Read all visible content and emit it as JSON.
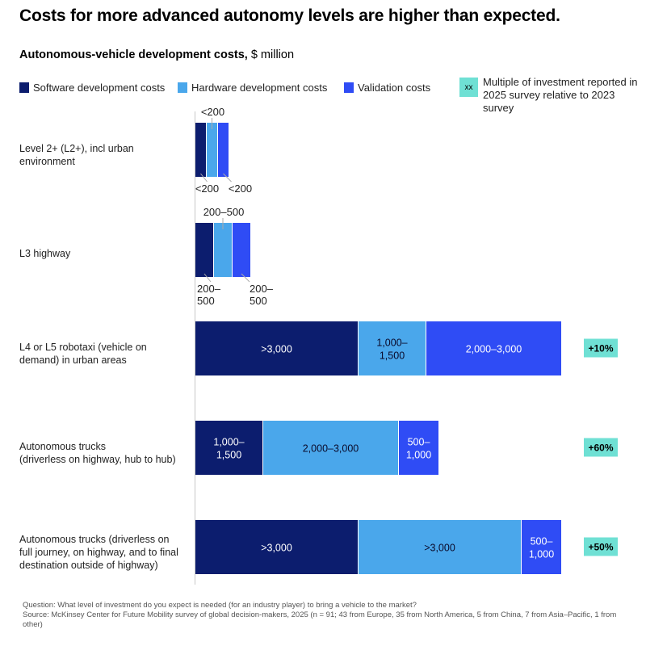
{
  "title": "Costs for more advanced autonomy levels are higher than expected.",
  "subtitle": {
    "bold": "Autonomous-vehicle development costs,",
    "unit": " $ million"
  },
  "legend": {
    "software": "Software development costs",
    "hardware": "Hardware development costs",
    "validation": "Validation costs",
    "badge_symbol": "xx",
    "badge_line1": "Multiple of investment reported in",
    "badge_line2": "2025 survey relative to 2023 survey"
  },
  "colors": {
    "software": "#0c1d6e",
    "hardware": "#4aa7eb",
    "validation": "#2f4cf5",
    "badge": "#6fe0d4"
  },
  "chart_data": {
    "type": "bar",
    "orientation": "horizontal-stacked",
    "title": "Costs for more advanced autonomy levels are higher than expected.",
    "subtitle": "Autonomous-vehicle development costs, $ million",
    "xlabel": "",
    "ylabel": "",
    "grid": false,
    "legend_position": "top",
    "categories": [
      "Level 2+ (L2+), incl urban environment",
      "L3 highway",
      "L4 or L5 robotaxi (vehicle on demand) in urban areas",
      "Autonomous trucks (driverless on highway, hub to hub)",
      "Autonomous trucks (driverless on full journey, on highway, and to final destination outside of highway)"
    ],
    "category_lines": [
      [
        "Level 2+ (L2+), incl urban",
        "environment"
      ],
      [
        "L3 highway"
      ],
      [
        "L4 or L5 robotaxi (vehicle on",
        "demand) in urban areas"
      ],
      [
        "Autonomous trucks",
        "(driverless on highway, hub to hub)"
      ],
      [
        "Autonomous trucks (driverless on",
        "full journey, on highway, and to final",
        "destination outside of highway)"
      ]
    ],
    "series": [
      {
        "name": "Software development costs",
        "key": "software",
        "values": [
          200,
          350,
          3000,
          1250,
          3000
        ],
        "labels": [
          "<200",
          "200–500",
          ">3,000",
          "1,000–1,500",
          ">3,000"
        ]
      },
      {
        "name": "Hardware development costs",
        "key": "hardware",
        "values": [
          200,
          350,
          1250,
          2500,
          3000
        ],
        "labels": [
          "<200",
          "200–500",
          "1,000–1,500",
          "2,000–3,000",
          ">3,000"
        ]
      },
      {
        "name": "Validation costs",
        "key": "validation",
        "values": [
          200,
          350,
          2500,
          750,
          750
        ],
        "labels": [
          "<200",
          "200–500",
          "2,000–3,000",
          "500–1,000",
          "500–1,000"
        ]
      }
    ],
    "multiples": [
      null,
      null,
      "+10%",
      "+60%",
      "+50%"
    ]
  },
  "footnote": {
    "question": "Question: What level of investment do you expect is needed (for an industry player) to bring a vehicle to the market?",
    "source": "Source: McKinsey Center for Future Mobility survey of global decision-makers, 2025 (n = 91; 43 from Europe, 35 from North America, 5 from China, 7 from Asia–Pacific, 1 from other)"
  }
}
